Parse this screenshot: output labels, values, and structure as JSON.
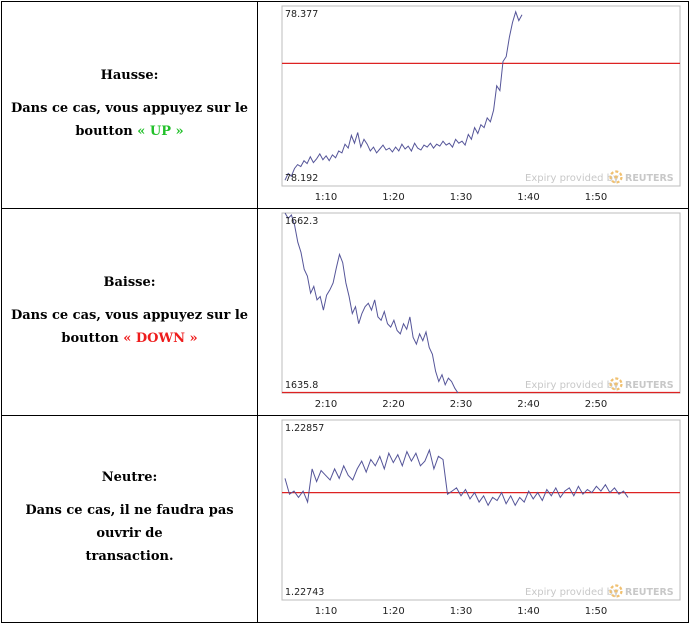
{
  "rows": [
    {
      "title": "Hausse:",
      "desc_line1": "Dans ce cas, vous appuyez sur le",
      "desc_prefix": "boutton",
      "action": "« UP »",
      "action_color": "#22c02a"
    },
    {
      "title": "Baisse:",
      "desc_line1": "Dans ce cas, vous appuyez sur le",
      "desc_prefix": "boutton",
      "action": "« DOWN »",
      "action_color": "#ee1c1c"
    },
    {
      "title": "Neutre:",
      "desc_line1": "Dans ce cas, il ne faudra pas ouvrir de",
      "desc_line2": "transaction."
    }
  ],
  "expiry_text": "Expiry provided by",
  "provider": "REUTERS",
  "chart_data": [
    {
      "type": "line",
      "y_max_label": "78.377",
      "y_min_label": "78.192",
      "ylim": [
        78.192,
        78.377
      ],
      "x_ticks": [
        "1:10",
        "1:20",
        "1:30",
        "1:40",
        "1:50"
      ],
      "threshold": 78.318,
      "threshold_color": "#dd2222",
      "line_color": "#555599",
      "values": [
        78.198,
        78.205,
        78.202,
        78.21,
        78.214,
        78.212,
        78.218,
        78.215,
        78.222,
        78.216,
        78.22,
        78.225,
        78.219,
        78.223,
        78.218,
        78.224,
        78.221,
        78.228,
        78.226,
        78.235,
        78.231,
        78.244,
        78.236,
        78.247,
        78.232,
        78.24,
        78.235,
        78.228,
        78.232,
        78.226,
        78.23,
        78.234,
        78.229,
        78.231,
        78.227,
        78.232,
        78.228,
        78.235,
        78.23,
        78.233,
        78.228,
        78.236,
        78.231,
        78.229,
        78.234,
        78.232,
        78.236,
        78.231,
        78.235,
        78.233,
        78.238,
        78.234,
        78.236,
        78.232,
        78.24,
        78.236,
        78.238,
        78.234,
        78.245,
        78.24,
        78.252,
        78.246,
        78.255,
        78.252,
        78.262,
        78.258,
        78.27,
        78.295,
        78.29,
        78.32,
        78.325,
        78.345,
        78.36,
        78.371,
        78.362,
        78.368
      ]
    },
    {
      "type": "line",
      "y_max_label": "1662.3",
      "y_min_label": "1635.8",
      "ylim": [
        1635.8,
        1662.3
      ],
      "x_ticks": [
        "2:10",
        "2:20",
        "2:30",
        "2:40",
        "2:50"
      ],
      "threshold": 1635.8,
      "threshold_color": "#dd2222",
      "line_color": "#555599",
      "values": [
        1662.3,
        1661.5,
        1662.0,
        1660.5,
        1658.0,
        1656.5,
        1654.0,
        1653.0,
        1650.5,
        1651.5,
        1649.5,
        1650.0,
        1648.0,
        1650.2,
        1651.0,
        1652.0,
        1654.2,
        1656.2,
        1655.0,
        1652.0,
        1650.0,
        1647.5,
        1648.5,
        1646.0,
        1647.5,
        1648.5,
        1649.0,
        1648.0,
        1649.5,
        1647.0,
        1646.5,
        1647.8,
        1646.0,
        1645.5,
        1646.5,
        1645.0,
        1644.5,
        1646.0,
        1645.2,
        1647.0,
        1644.0,
        1643.0,
        1644.5,
        1643.5,
        1644.8,
        1642.5,
        1641.5,
        1639.0,
        1637.5,
        1638.5,
        1637.0,
        1638.0,
        1637.5,
        1636.5,
        1635.8
      ]
    },
    {
      "type": "line",
      "y_max_label": "1.22857",
      "y_min_label": "1.22743",
      "ylim": [
        1.22743,
        1.22857
      ],
      "x_ticks": [
        "1:10",
        "1:20",
        "1:30",
        "1:40",
        "1:50"
      ],
      "threshold": 1.22811,
      "threshold_color": "#dd2222",
      "line_color": "#555599",
      "values": [
        1.2282,
        1.2281,
        1.22812,
        1.22808,
        1.22812,
        1.22805,
        1.22826,
        1.22818,
        1.22825,
        1.22822,
        1.22819,
        1.22826,
        1.2282,
        1.22828,
        1.22822,
        1.22819,
        1.22826,
        1.22831,
        1.22824,
        1.22832,
        1.22828,
        1.22834,
        1.22826,
        1.22836,
        1.2283,
        1.22835,
        1.22828,
        1.22837,
        1.22831,
        1.22836,
        1.22828,
        1.22831,
        1.22838,
        1.22826,
        1.22834,
        1.22832,
        1.2281,
        1.22812,
        1.22814,
        1.22809,
        1.22813,
        1.22807,
        1.22811,
        1.22805,
        1.22809,
        1.22803,
        1.22808,
        1.22806,
        1.22811,
        1.22804,
        1.22809,
        1.22803,
        1.22808,
        1.22805,
        1.22812,
        1.22807,
        1.22811,
        1.22806,
        1.22813,
        1.22809,
        1.22814,
        1.22808,
        1.22812,
        1.22814,
        1.22809,
        1.22815,
        1.2281,
        1.22813,
        1.22811,
        1.22815,
        1.22812,
        1.22816,
        1.22811,
        1.22814,
        1.2281,
        1.22812,
        1.22808
      ]
    }
  ]
}
